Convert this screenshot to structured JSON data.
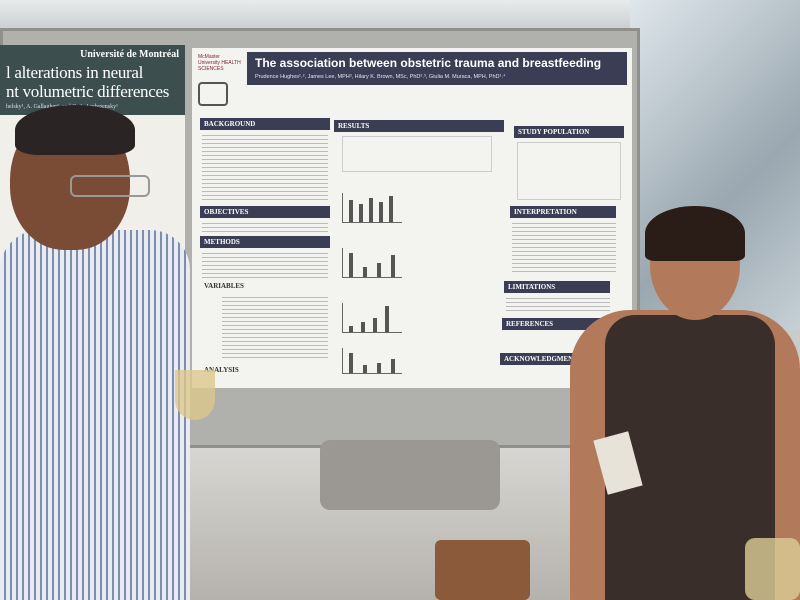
{
  "scene": {
    "description_colors": {
      "poster_header": "#3b3d55",
      "left_poster_header": "#3d4e4f"
    }
  },
  "left_poster": {
    "title_line1": "l alterations in neural",
    "title_line2": "nt volumetric differences",
    "university": "Université de Montréal",
    "authors": "helsky¹, A. Gallagher¹, and G. A. Lodygensky¹"
  },
  "poster": {
    "logo": "McMaster University HEALTH SCIENCES",
    "title": "The association between obstetric trauma and breastfeeding",
    "authors": "Prudence Hughes¹˒², James Lee, MPH³, Hilary K. Brown, MSc, PhD²˒³, Giulia M. Muraca, MPH, PhD¹˒⁴",
    "sections": {
      "background": "BACKGROUND",
      "objectives": "OBJECTIVES",
      "methods": "METHODS",
      "variables": "VARIABLES",
      "analysis": "ANALYSIS",
      "results": "RESULTS",
      "study_population": "STUDY POPULATION",
      "interpretation": "INTERPRETATION",
      "limitations": "LIMITATIONS",
      "references": "REFERENCES",
      "acknowledgments": "ACKNOWLEDGMENTS"
    }
  }
}
